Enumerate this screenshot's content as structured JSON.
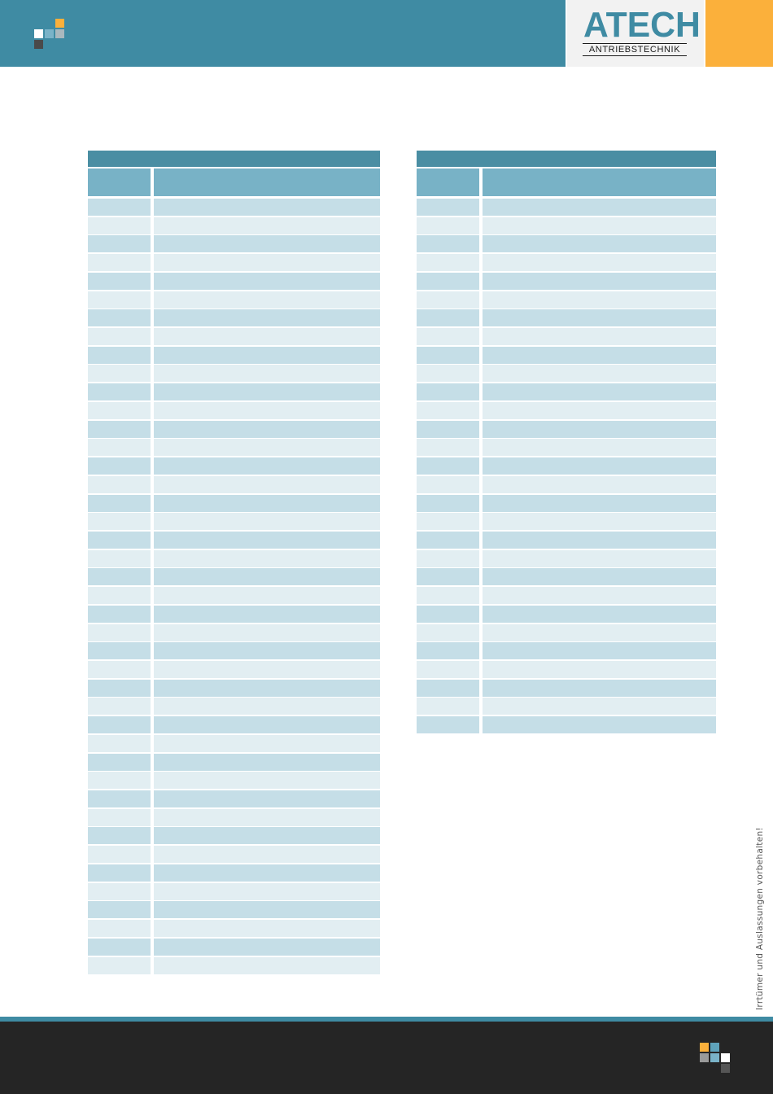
{
  "brand": {
    "name": "ATECH",
    "subtitle": "ANTRIEBSTECHNIK",
    "colors": {
      "primary": "#3f8ba3",
      "accent": "#fbb03b",
      "footer": "#252525"
    }
  },
  "tables": {
    "left": {
      "title": "",
      "columns": [
        "",
        ""
      ],
      "row_count": 42
    },
    "right": {
      "title": "",
      "columns": [
        "",
        ""
      ],
      "row_count": 29
    }
  },
  "side_note": "Irrtümer und Auslassungen vorbehalten!",
  "icons": [
    "header-squares-icon",
    "footer-squares-icon"
  ]
}
